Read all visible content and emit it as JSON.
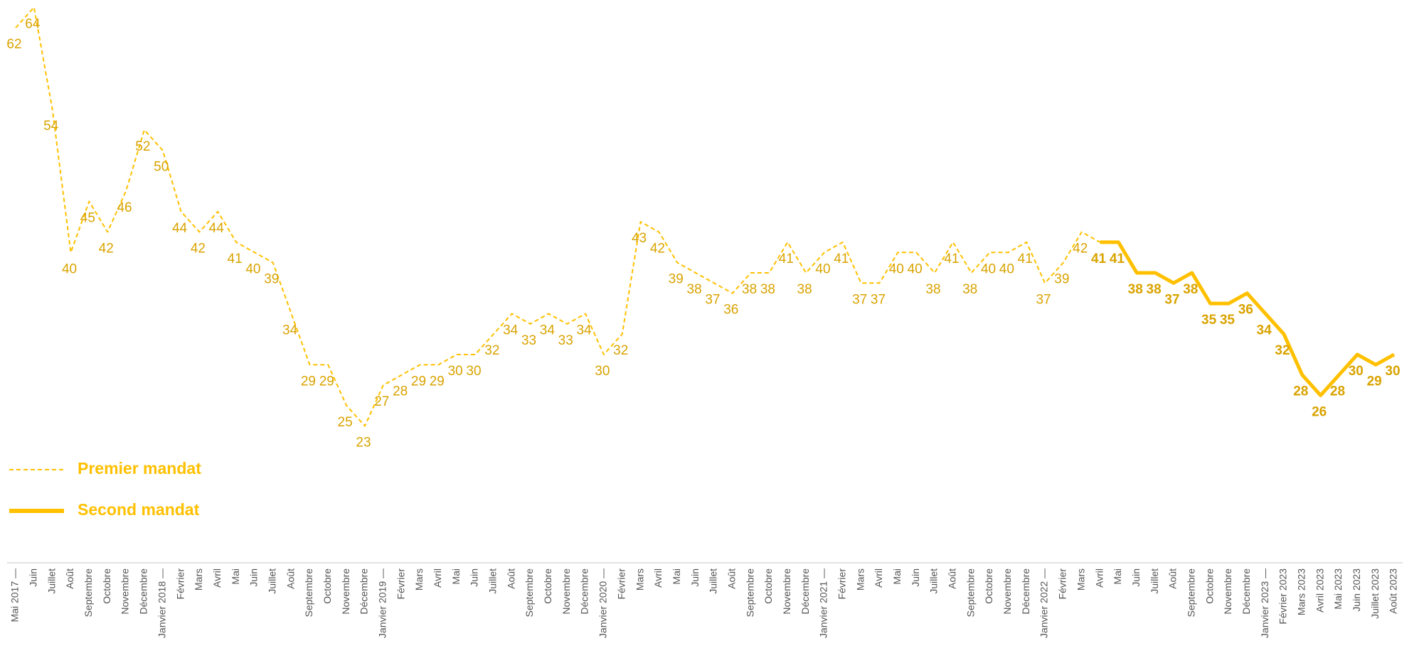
{
  "chart_data": {
    "type": "line",
    "categories": [
      "Mai 2017 —",
      "Juin",
      "Juillet",
      "Août",
      "Septembre",
      "Octobre",
      "Novembre",
      "Décembre",
      "Janvier 2018 —",
      "Février",
      "Mars",
      "Avril",
      "Mai",
      "Juin",
      "Juillet",
      "Août",
      "Septembre",
      "Octobre",
      "Novembre",
      "Décembre",
      "Janvier 2019 —",
      "Février",
      "Mars",
      "Avril",
      "Mai",
      "Juin",
      "Juillet",
      "Août",
      "Septembre",
      "Octobre",
      "Novembre",
      "Décembre",
      "Janvier 2020 —",
      "Février",
      "Mars",
      "Avril",
      "Mai",
      "Juin",
      "Juillet",
      "Août",
      "Septembre",
      "Octobre",
      "Novembre",
      "Décembre",
      "Janvier 2021 —",
      "Février",
      "Mars",
      "Avril",
      "Mai",
      "Juin",
      "Juillet",
      "Août",
      "Septembre",
      "Octobre",
      "Novembre",
      "Décembre",
      "Janvier 2022 —",
      "Février",
      "Mars",
      "Avril",
      "Mai",
      "Juin",
      "Juillet",
      "Août",
      "Septembre",
      "Octobre",
      "Novembre",
      "Décembre",
      "Janvier 2023 —",
      "Février 2023",
      "Mars 2023",
      "Avril 2023",
      "Mai 2023",
      "Juin 2023",
      "Juillet 2023",
      "Août 2023"
    ],
    "series": [
      {
        "name": "Premier mandat",
        "color": "#ffc000",
        "dashed": true,
        "values": [
          62,
          64,
          54,
          40,
          45,
          42,
          46,
          52,
          50,
          44,
          42,
          44,
          41,
          40,
          39,
          34,
          29,
          29,
          25,
          23,
          27,
          28,
          29,
          29,
          30,
          30,
          32,
          34,
          33,
          34,
          33,
          34,
          30,
          32,
          43,
          42,
          39,
          38,
          37,
          36,
          38,
          38,
          41,
          38,
          40,
          41,
          37,
          37,
          40,
          40,
          38,
          41,
          38,
          40,
          40,
          41,
          37,
          39,
          42,
          41,
          null,
          null,
          null,
          null,
          null,
          null,
          null,
          null,
          null,
          null,
          null,
          null,
          null,
          null,
          null,
          null
        ]
      },
      {
        "name": "Second mandat",
        "color": "#ffc000",
        "dashed": false,
        "values": [
          null,
          null,
          null,
          null,
          null,
          null,
          null,
          null,
          null,
          null,
          null,
          null,
          null,
          null,
          null,
          null,
          null,
          null,
          null,
          null,
          null,
          null,
          null,
          null,
          null,
          null,
          null,
          null,
          null,
          null,
          null,
          null,
          null,
          null,
          null,
          null,
          null,
          null,
          null,
          null,
          null,
          null,
          null,
          null,
          null,
          null,
          null,
          null,
          null,
          null,
          null,
          null,
          null,
          null,
          null,
          null,
          null,
          null,
          null,
          41,
          41,
          38,
          38,
          37,
          38,
          35,
          35,
          36,
          34,
          32,
          28,
          26,
          28,
          30,
          29,
          30
        ]
      }
    ],
    "ylim": [
      20,
      65
    ]
  }
}
